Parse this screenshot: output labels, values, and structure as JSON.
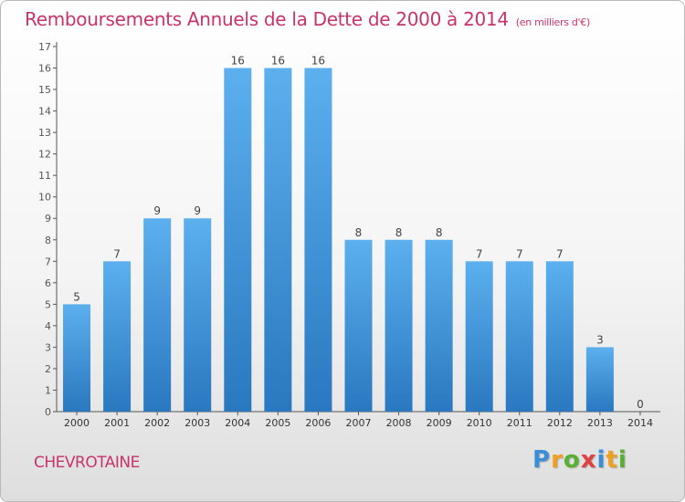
{
  "title": "Remboursements Annuels de la Dette de 2000 à 2014",
  "subtitle": "(en milliers d'€)",
  "commune": "CHEVROTAINE",
  "logo": {
    "letters": [
      "P",
      "r",
      "o",
      "x",
      "i",
      "t",
      "i"
    ],
    "colors": [
      "#3a8ed8",
      "#f0a020",
      "#58b030",
      "#e04040",
      "#3a8ed8",
      "#f0a020",
      "#58b030"
    ]
  },
  "colors": {
    "bar_light": "#5cb0ee",
    "bar_dark": "#2a78c0",
    "accent": "#c8336d"
  },
  "chart_data": {
    "type": "bar",
    "categories": [
      "2000",
      "2001",
      "2002",
      "2003",
      "2004",
      "2005",
      "2006",
      "2007",
      "2008",
      "2009",
      "2010",
      "2011",
      "2012",
      "2013",
      "2014"
    ],
    "values": [
      5,
      7,
      9,
      9,
      16,
      16,
      16,
      8,
      8,
      8,
      7,
      7,
      7,
      3,
      0
    ],
    "ylim": [
      0,
      17
    ],
    "yticks": [
      "0",
      "1",
      "2",
      "3",
      "4",
      "5",
      "6",
      "7",
      "8",
      "9",
      "10",
      "11",
      "12",
      "13",
      "14",
      "15",
      "16",
      "17"
    ],
    "grid": false,
    "title": "Remboursements Annuels de la Dette de 2000 à 2014",
    "subtitle": "(en milliers d'€)"
  }
}
